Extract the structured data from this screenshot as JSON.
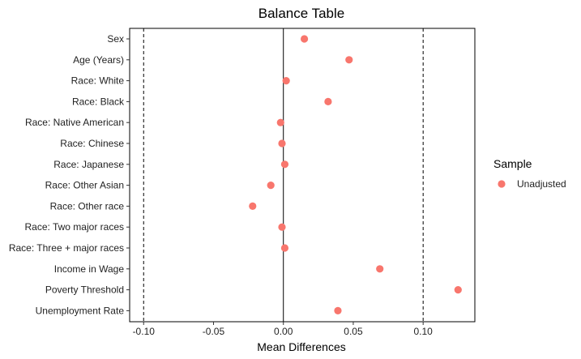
{
  "chart_data": {
    "type": "scatter",
    "title": "Balance Table",
    "xlabel": "Mean Differences",
    "ylabel": "",
    "xlim": [
      -0.11,
      0.137
    ],
    "x_ticks": [
      -0.1,
      -0.05,
      0.0,
      0.05,
      0.1
    ],
    "x_tick_labels": [
      "-0.10",
      "-0.05",
      "0.00",
      "0.05",
      "0.10"
    ],
    "reference_lines": [
      {
        "x": 0,
        "style": "solid"
      },
      {
        "x": -0.1,
        "style": "dashed"
      },
      {
        "x": 0.1,
        "style": "dashed"
      }
    ],
    "categories": [
      "Sex",
      "Age (Years)",
      "Race: White",
      "Race: Black",
      "Race: Native American",
      "Race: Chinese",
      "Race: Japanese",
      "Race: Other Asian",
      "Race: Other race",
      "Race: Two major races",
      "Race: Three + major races",
      "Income in Wage",
      "Poverty Threshold",
      "Unemployment Rate"
    ],
    "series": [
      {
        "name": "Unadjusted",
        "color": "#F8766D",
        "values": [
          0.015,
          0.047,
          0.002,
          0.032,
          -0.002,
          -0.001,
          0.001,
          -0.009,
          -0.022,
          -0.001,
          0.001,
          0.069,
          0.125,
          0.039
        ]
      }
    ],
    "legend": {
      "title": "Sample",
      "position": "right"
    },
    "grid": false
  }
}
